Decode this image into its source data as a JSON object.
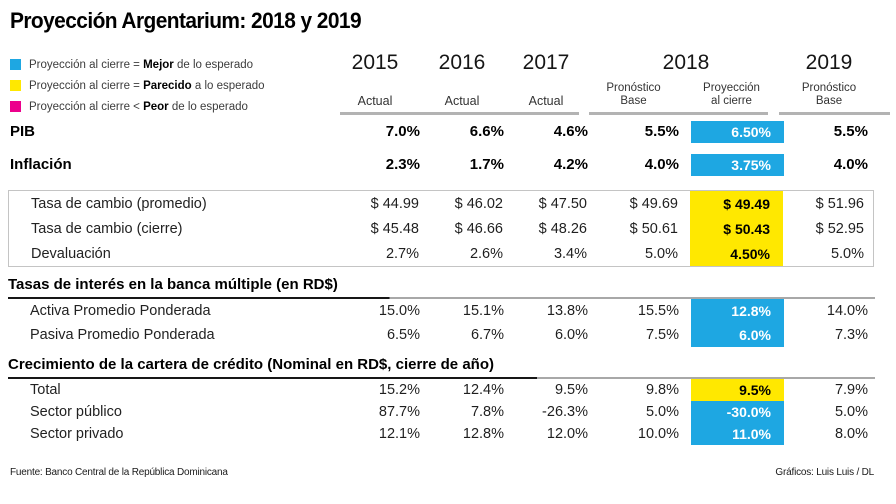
{
  "title": "Proyección Argentarium: 2018 y 2019",
  "colors": {
    "blue": "#1EA7E2",
    "yellow": "#FFE800",
    "magenta": "#EC008C"
  },
  "legend": {
    "items": [
      {
        "color": "#1EA7E2",
        "prefix": "Proyección al cierre = ",
        "bold": "Mejor",
        "suffix": " de lo esperado"
      },
      {
        "color": "#FFE800",
        "prefix": "Proyección al cierre = ",
        "bold": "Parecido",
        "suffix": " a lo esperado"
      },
      {
        "color": "#EC008C",
        "prefix": "Proyección al cierre < ",
        "bold": "Peor",
        "suffix": " de lo esperado"
      }
    ]
  },
  "header": {
    "years": {
      "y2015": "2015",
      "y2016": "2016",
      "y2017": "2017",
      "y2018": "2018",
      "y2019": "2019"
    },
    "subs": {
      "actual1": "Actual",
      "actual2": "Actual",
      "actual3": "Actual",
      "base2018_l1": "Pronóstico",
      "base2018_l2": "Base",
      "proj_l1": "Proyección",
      "proj_l2": "al cierre",
      "base2019_l1": "Pronóstico",
      "base2019_l2": "Base"
    }
  },
  "table": {
    "pib": {
      "label": "PIB",
      "v": [
        "7.0%",
        "6.6%",
        "4.6%",
        "5.5%",
        "6.50%",
        "5.5%"
      ]
    },
    "inflacion": {
      "label": "Inflación",
      "v": [
        "2.3%",
        "1.7%",
        "4.2%",
        "4.0%",
        "3.75%",
        "4.0%"
      ]
    },
    "cambio": {
      "promedio": {
        "label": "Tasa de cambio (promedio)",
        "v": [
          "$ 44.99",
          "$ 46.02",
          "$ 47.50",
          "$ 49.69",
          "$ 49.49",
          "$ 51.96"
        ]
      },
      "cierre": {
        "label": "Tasa de cambio (cierre)",
        "v": [
          "$ 45.48",
          "$ 46.66",
          "$ 48.26",
          "$ 50.61",
          "$ 50.43",
          "$ 52.95"
        ]
      },
      "devaluacion": {
        "label": "Devaluación",
        "v": [
          "2.7%",
          "2.6%",
          "3.4%",
          "5.0%",
          "4.50%",
          "5.0%"
        ]
      }
    },
    "tasas": {
      "section": "Tasas de interés en la banca múltiple (en RD$)",
      "activa": {
        "label": "Activa Promedio Ponderada",
        "v": [
          "15.0%",
          "15.1%",
          "13.8%",
          "15.5%",
          "12.8%",
          "14.0%"
        ]
      },
      "pasiva": {
        "label": "Pasiva Promedio Ponderada",
        "v": [
          "6.5%",
          "6.7%",
          "6.0%",
          "7.5%",
          "6.0%",
          "7.3%"
        ]
      }
    },
    "cartera": {
      "section": "Crecimiento de la cartera de crédito (Nominal en RD$, cierre de año)",
      "total": {
        "label": "Total",
        "v": [
          "15.2%",
          "12.4%",
          "9.5%",
          "9.8%",
          "9.5%",
          "7.9%"
        ]
      },
      "publico": {
        "label": "Sector público",
        "v": [
          "87.7%",
          "7.8%",
          "-26.3%",
          "5.0%",
          "-30.0%",
          "5.0%"
        ]
      },
      "privado": {
        "label": "Sector privado",
        "v": [
          "12.1%",
          "12.8%",
          "12.0%",
          "10.0%",
          "11.0%",
          "8.0%"
        ]
      }
    }
  },
  "footer": {
    "source": "Fuente: Banco Central de la República Dominicana",
    "credit": "Gráficos: Luis Luis / DL"
  },
  "chart_data": {
    "type": "table",
    "title": "Proyección Argentarium: 2018 y 2019",
    "columns": [
      "2015 Actual",
      "2016 Actual",
      "2017 Actual",
      "2018 Pronóstico Base",
      "2018 Proyección al cierre",
      "2019 Pronóstico Base"
    ],
    "legend": {
      "blue": "Proyección al cierre = Mejor de lo esperado",
      "yellow": "Proyección al cierre = Parecido a lo esperado",
      "magenta": "Proyección al cierre < Peor de lo esperado"
    },
    "rows": [
      {
        "label": "PIB",
        "unit": "%",
        "values": [
          7.0,
          6.6,
          4.6,
          5.5,
          6.5,
          5.5
        ],
        "highlight": "blue"
      },
      {
        "label": "Inflación",
        "unit": "%",
        "values": [
          2.3,
          1.7,
          4.2,
          4.0,
          3.75,
          4.0
        ],
        "highlight": "blue"
      },
      {
        "label": "Tasa de cambio (promedio)",
        "unit": "RD$",
        "values": [
          44.99,
          46.02,
          47.5,
          49.69,
          49.49,
          51.96
        ],
        "highlight": "yellow"
      },
      {
        "label": "Tasa de cambio (cierre)",
        "unit": "RD$",
        "values": [
          45.48,
          46.66,
          48.26,
          50.61,
          50.43,
          52.95
        ],
        "highlight": "yellow"
      },
      {
        "label": "Devaluación",
        "unit": "%",
        "values": [
          2.7,
          2.6,
          3.4,
          5.0,
          4.5,
          5.0
        ],
        "highlight": "yellow"
      },
      {
        "label": "Tasas de interés — Activa Promedio Ponderada",
        "unit": "%",
        "values": [
          15.0,
          15.1,
          13.8,
          15.5,
          12.8,
          14.0
        ],
        "highlight": "blue"
      },
      {
        "label": "Tasas de interés — Pasiva Promedio Ponderada",
        "unit": "%",
        "values": [
          6.5,
          6.7,
          6.0,
          7.5,
          6.0,
          7.3
        ],
        "highlight": "blue"
      },
      {
        "label": "Cartera de crédito — Total",
        "unit": "%",
        "values": [
          15.2,
          12.4,
          9.5,
          9.8,
          9.5,
          7.9
        ],
        "highlight": "yellow"
      },
      {
        "label": "Cartera de crédito — Sector público",
        "unit": "%",
        "values": [
          87.7,
          7.8,
          -26.3,
          5.0,
          -30.0,
          5.0
        ],
        "highlight": "blue"
      },
      {
        "label": "Cartera de crédito — Sector privado",
        "unit": "%",
        "values": [
          12.1,
          12.8,
          12.0,
          10.0,
          11.0,
          8.0
        ],
        "highlight": "blue"
      }
    ]
  }
}
